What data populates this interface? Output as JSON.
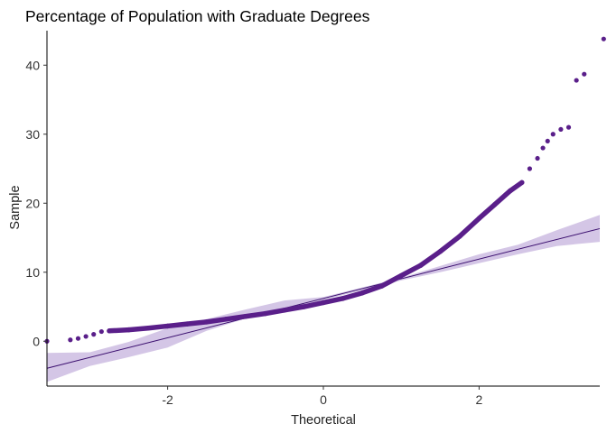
{
  "chart_data": {
    "type": "scatter",
    "subtype": "qq-plot",
    "title": "Percentage of Population with Graduate Degrees",
    "xlabel": "Theoretical",
    "ylabel": "Sample",
    "xlim": [
      -3.55,
      3.55
    ],
    "ylim": [
      -6.5,
      45
    ],
    "x_ticks": [
      -2,
      0,
      2
    ],
    "y_ticks": [
      0,
      10,
      20,
      30,
      40
    ],
    "grid": false,
    "legend": "none",
    "point_color": "#5a1f8a",
    "line_color": "#3b0f6f",
    "band_color": "#d4c6e6",
    "reference_line": {
      "intercept": 6.2,
      "slope": 2.85
    },
    "confidence_band": {
      "x": [
        -3.55,
        -3.0,
        -2.5,
        -2.0,
        -1.5,
        -1.0,
        -0.5,
        0.0,
        0.5,
        1.0,
        1.5,
        2.0,
        2.5,
        3.0,
        3.55
      ],
      "lower": [
        -5.9,
        -3.6,
        -2.3,
        -0.9,
        1.5,
        3.3,
        4.7,
        6.0,
        7.4,
        8.8,
        10.0,
        11.3,
        12.6,
        13.8,
        14.4
      ],
      "upper": [
        -1.7,
        -1.6,
        -0.1,
        1.9,
        3.2,
        4.6,
        5.9,
        6.4,
        7.8,
        9.2,
        10.9,
        12.6,
        14.0,
        16.1,
        18.3
      ]
    },
    "points": [
      {
        "x": -3.55,
        "y": 0.0
      },
      {
        "x": -3.25,
        "y": 0.2
      },
      {
        "x": -3.15,
        "y": 0.4
      },
      {
        "x": -3.05,
        "y": 0.7
      },
      {
        "x": -2.95,
        "y": 1.0
      },
      {
        "x": -2.85,
        "y": 1.4
      },
      {
        "x": -2.75,
        "y": 1.5
      },
      {
        "x": -2.5,
        "y": 1.65
      },
      {
        "x": -2.25,
        "y": 1.9
      },
      {
        "x": -2.0,
        "y": 2.2
      },
      {
        "x": -1.75,
        "y": 2.5
      },
      {
        "x": -1.5,
        "y": 2.8
      },
      {
        "x": -1.25,
        "y": 3.2
      },
      {
        "x": -1.0,
        "y": 3.6
      },
      {
        "x": -0.75,
        "y": 4.0
      },
      {
        "x": -0.5,
        "y": 4.5
      },
      {
        "x": -0.25,
        "y": 5.0
      },
      {
        "x": 0.0,
        "y": 5.6
      },
      {
        "x": 0.25,
        "y": 6.2
      },
      {
        "x": 0.5,
        "y": 7.0
      },
      {
        "x": 0.75,
        "y": 8.0
      },
      {
        "x": 1.0,
        "y": 9.5
      },
      {
        "x": 1.25,
        "y": 11.0
      },
      {
        "x": 1.5,
        "y": 13.0
      },
      {
        "x": 1.75,
        "y": 15.2
      },
      {
        "x": 2.0,
        "y": 17.8
      },
      {
        "x": 2.2,
        "y": 19.8
      },
      {
        "x": 2.4,
        "y": 21.8
      },
      {
        "x": 2.55,
        "y": 23.0
      },
      {
        "x": 2.65,
        "y": 25.0
      },
      {
        "x": 2.75,
        "y": 26.5
      },
      {
        "x": 2.82,
        "y": 28.0
      },
      {
        "x": 2.88,
        "y": 29.0
      },
      {
        "x": 2.95,
        "y": 30.0
      },
      {
        "x": 3.05,
        "y": 30.7
      },
      {
        "x": 3.15,
        "y": 31.0
      },
      {
        "x": 3.25,
        "y": 37.8
      },
      {
        "x": 3.35,
        "y": 38.7
      },
      {
        "x": 3.6,
        "y": 43.8
      }
    ]
  }
}
